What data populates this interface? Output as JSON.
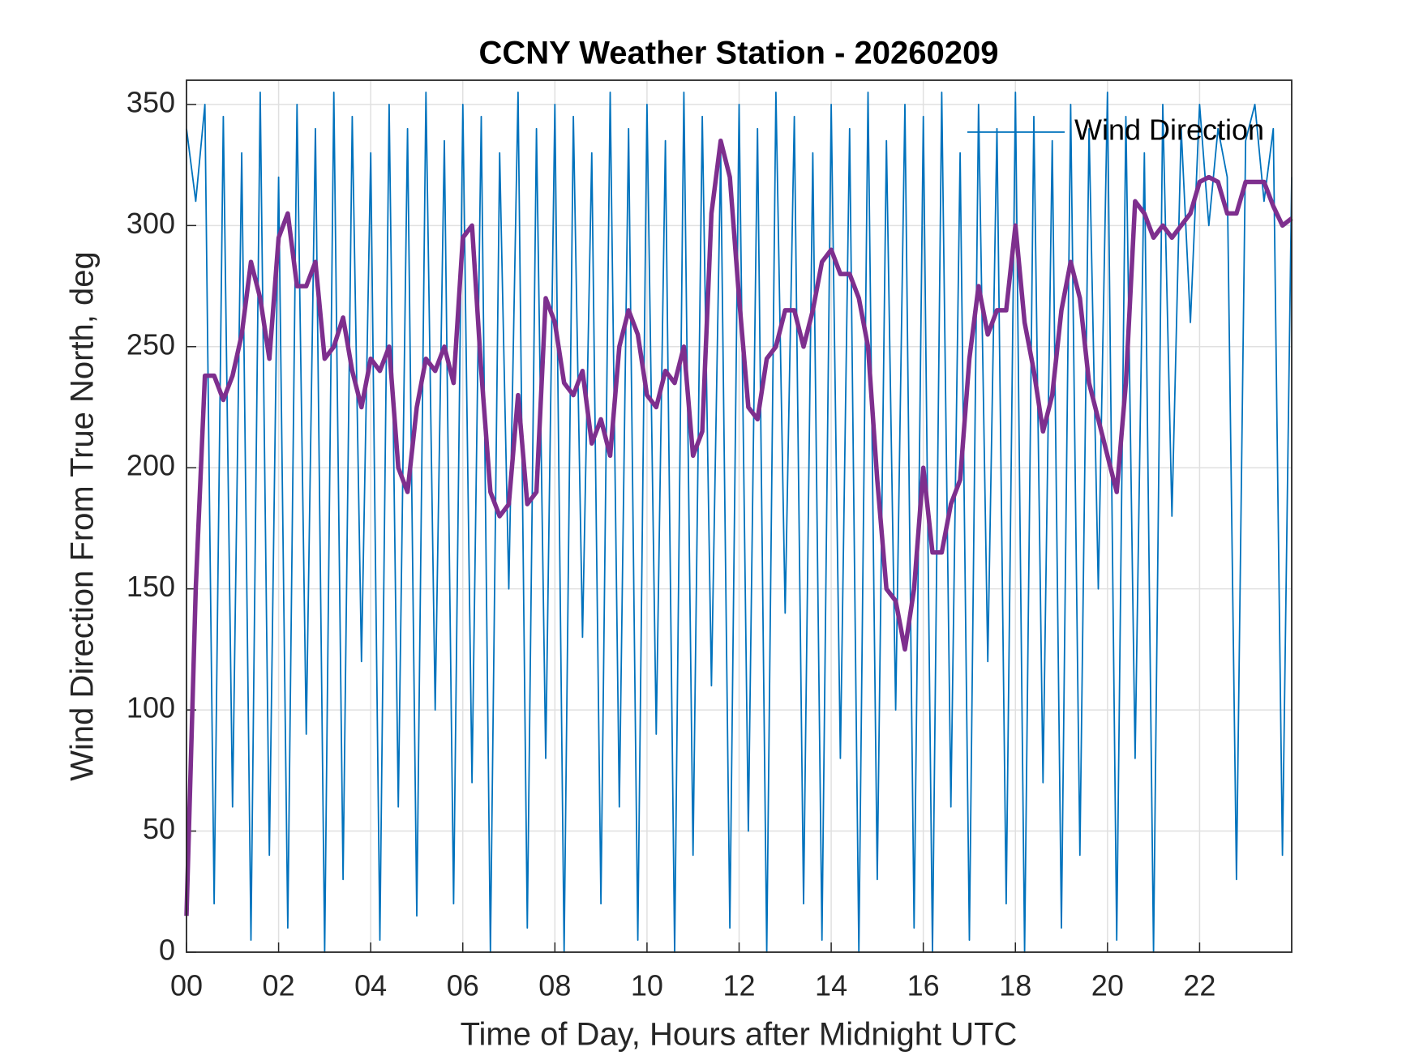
{
  "chart_data": {
    "type": "line",
    "title": "CCNY Weather Station - 20260209",
    "x_label": "Time of Day, Hours after Midnight UTC",
    "y_label": "Wind Direction From True North, deg",
    "x": [
      0,
      0.2,
      0.4,
      0.6,
      0.8,
      1,
      1.2,
      1.4,
      1.6,
      1.8,
      2,
      2.2,
      2.4,
      2.6,
      2.8,
      3,
      3.2,
      3.4,
      3.6,
      3.8,
      4,
      4.2,
      4.4,
      4.6,
      4.8,
      5,
      5.2,
      5.4,
      5.6,
      5.8,
      6,
      6.2,
      6.4,
      6.6,
      6.8,
      7,
      7.2,
      7.4,
      7.6,
      7.8,
      8,
      8.2,
      8.4,
      8.6,
      8.8,
      9,
      9.2,
      9.4,
      9.6,
      9.8,
      10,
      10.2,
      10.4,
      10.6,
      10.8,
      11,
      11.2,
      11.4,
      11.6,
      11.8,
      12,
      12.2,
      12.4,
      12.6,
      12.8,
      13,
      13.2,
      13.4,
      13.6,
      13.8,
      14,
      14.2,
      14.4,
      14.6,
      14.8,
      15,
      15.2,
      15.4,
      15.6,
      15.8,
      16,
      16.2,
      16.4,
      16.6,
      16.8,
      17,
      17.2,
      17.4,
      17.6,
      17.8,
      18,
      18.2,
      18.4,
      18.6,
      18.8,
      19,
      19.2,
      19.4,
      19.6,
      19.8,
      20,
      20.2,
      20.4,
      20.6,
      20.8,
      21,
      21.2,
      21.4,
      21.6,
      21.8,
      22,
      22.2,
      22.4,
      22.6,
      22.8,
      23,
      23.2,
      23.4,
      23.6,
      23.8,
      24
    ],
    "series": [
      {
        "name": "Wind Direction",
        "color": "#0072bd",
        "values": [
          340,
          310,
          350,
          20,
          345,
          60,
          330,
          5,
          355,
          40,
          320,
          10,
          350,
          90,
          340,
          0,
          355,
          30,
          345,
          120,
          330,
          5,
          350,
          60,
          340,
          15,
          355,
          100,
          335,
          20,
          350,
          70,
          345,
          0,
          330,
          150,
          355,
          10,
          340,
          80,
          350,
          0,
          345,
          130,
          330,
          20,
          355,
          60,
          340,
          5,
          350,
          90,
          335,
          0,
          355,
          40,
          345,
          110,
          330,
          10,
          350,
          50,
          340,
          0,
          355,
          140,
          345,
          20,
          330,
          5,
          350,
          80,
          340,
          0,
          355,
          30,
          335,
          100,
          350,
          10,
          345,
          0,
          355,
          60,
          330,
          5,
          350,
          120,
          340,
          20,
          355,
          0,
          345,
          70,
          335,
          10,
          350,
          40,
          340,
          150,
          355,
          5,
          345,
          80,
          330,
          0,
          350,
          180,
          340,
          260,
          350,
          300,
          340,
          320,
          30,
          335,
          350,
          310,
          340,
          40,
          320
        ]
      },
      {
        "color": "#7e2f8e",
        "values": [
          15,
          150,
          238,
          238,
          228,
          238,
          255,
          285,
          270,
          245,
          295,
          305,
          275,
          275,
          285,
          245,
          250,
          262,
          240,
          225,
          245,
          240,
          250,
          200,
          190,
          225,
          245,
          240,
          250,
          235,
          295,
          300,
          240,
          190,
          180,
          185,
          230,
          185,
          190,
          270,
          260,
          235,
          230,
          240,
          210,
          220,
          205,
          250,
          265,
          255,
          230,
          225,
          240,
          235,
          250,
          205,
          215,
          305,
          335,
          320,
          270,
          225,
          220,
          245,
          250,
          265,
          265,
          250,
          265,
          285,
          290,
          280,
          280,
          270,
          250,
          195,
          150,
          145,
          125,
          150,
          200,
          165,
          165,
          185,
          195,
          245,
          275,
          255,
          265,
          265,
          300,
          260,
          240,
          215,
          230,
          265,
          285,
          270,
          235,
          220,
          205,
          190,
          235,
          310,
          305,
          295,
          300,
          295,
          300,
          305,
          318,
          320,
          318,
          305,
          305,
          318,
          318,
          318,
          308,
          300,
          303
        ]
      }
    ],
    "xlim": [
      0,
      24
    ],
    "xticks": [
      {
        "value": 0,
        "label": "00"
      },
      {
        "value": 2,
        "label": "02"
      },
      {
        "value": 4,
        "label": "04"
      },
      {
        "value": 6,
        "label": "06"
      },
      {
        "value": 8,
        "label": "08"
      },
      10,
      12,
      14,
      16,
      18,
      20,
      22
    ],
    "ylim": [
      0,
      360
    ],
    "yticks": [
      0,
      50,
      100,
      150,
      200,
      250,
      300,
      350
    ],
    "grid": true,
    "legend": "upper right"
  }
}
